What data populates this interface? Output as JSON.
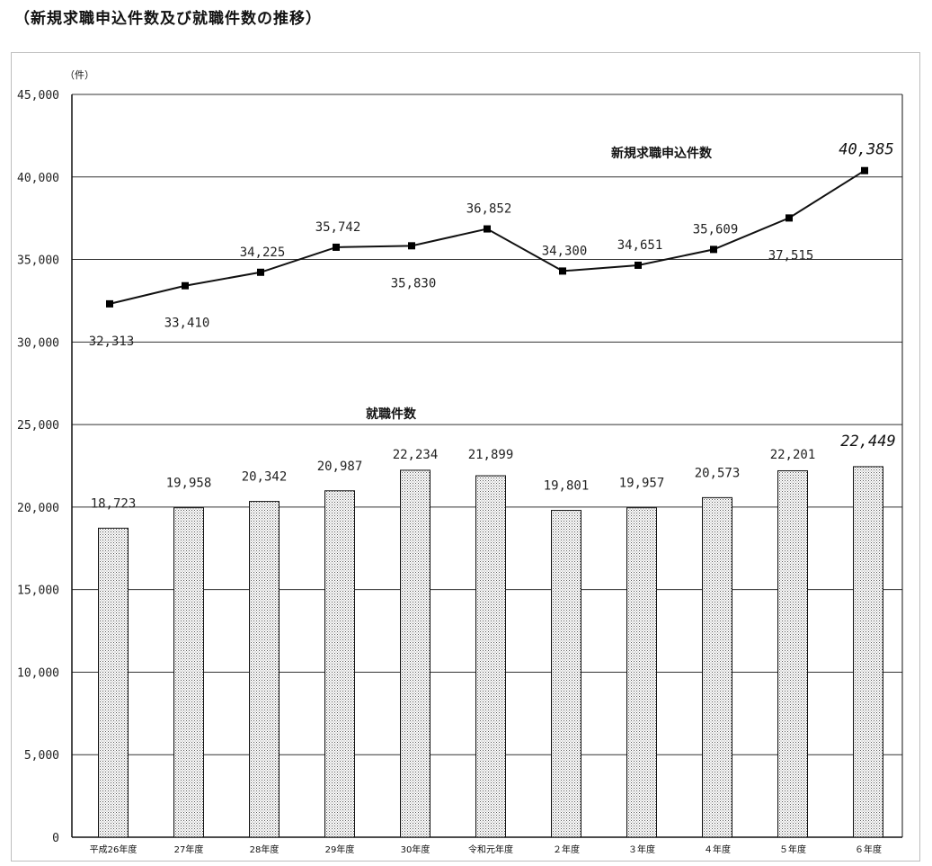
{
  "title": "（新規求職申込件数及び就職件数の推移）",
  "chart_data": {
    "type": "bar",
    "unit_label": "（件）",
    "categories": [
      "平成26年度",
      "27年度",
      "28年度",
      "29年度",
      "30年度",
      "令和元年度",
      "２年度",
      "３年度",
      "４年度",
      "５年度",
      "６年度"
    ],
    "ylim": [
      0,
      45000
    ],
    "yticks": [
      "0",
      "5,000",
      "10,000",
      "15,000",
      "20,000",
      "25,000",
      "30,000",
      "35,000",
      "40,000",
      "45,000"
    ],
    "grid": true,
    "series": [
      {
        "name": "新規求職申込件数",
        "type": "line",
        "values": [
          32313,
          33410,
          34225,
          35742,
          35830,
          36852,
          34300,
          34651,
          35609,
          37515,
          40385
        ],
        "labels": [
          "32,313",
          "33,410",
          "34,225",
          "35,742",
          "35,830",
          "36,852",
          "34,300",
          "34,651",
          "35,609",
          "37,515",
          "40,385"
        ]
      },
      {
        "name": "就職件数",
        "type": "bar",
        "values": [
          18723,
          19958,
          20342,
          20987,
          22234,
          21899,
          19801,
          19957,
          20573,
          22201,
          22449
        ],
        "labels": [
          "18,723",
          "19,958",
          "20,342",
          "20,987",
          "22,234",
          "21,899",
          "19,801",
          "19,957",
          "20,573",
          "22,201",
          "22,449"
        ]
      }
    ]
  }
}
